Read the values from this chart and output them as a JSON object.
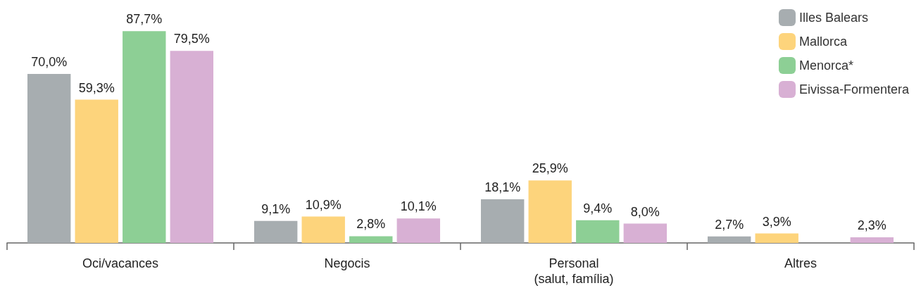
{
  "chart_data": {
    "type": "bar",
    "categories": [
      "Oci/vacances",
      "Negocis",
      "Personal\n(salut, família)",
      "Altres"
    ],
    "series": [
      {
        "name": "Illes Balears",
        "color": "#a7adb0",
        "values": [
          70.0,
          9.1,
          18.1,
          2.7
        ],
        "value_labels": [
          "70,0%",
          "9,1%",
          "18,1%",
          "2,7%"
        ]
      },
      {
        "name": "Mallorca",
        "color": "#fdd47c",
        "values": [
          59.3,
          10.9,
          25.9,
          3.9
        ],
        "value_labels": [
          "59,3%",
          "10,9%",
          "25,9%",
          "3,9%"
        ]
      },
      {
        "name": "Menorca*",
        "color": "#8dcf95",
        "values": [
          87.7,
          2.8,
          9.4,
          null
        ],
        "value_labels": [
          "87,7%",
          "2,8%",
          "9,4%",
          null
        ]
      },
      {
        "name": "Eivissa-Formentera",
        "color": "#d8b0d4",
        "values": [
          79.5,
          10.1,
          8.0,
          2.3
        ],
        "value_labels": [
          "79,5%",
          "10,1%",
          "8,0%",
          "2,3%"
        ]
      }
    ],
    "legend": "top right",
    "grid": false
  }
}
